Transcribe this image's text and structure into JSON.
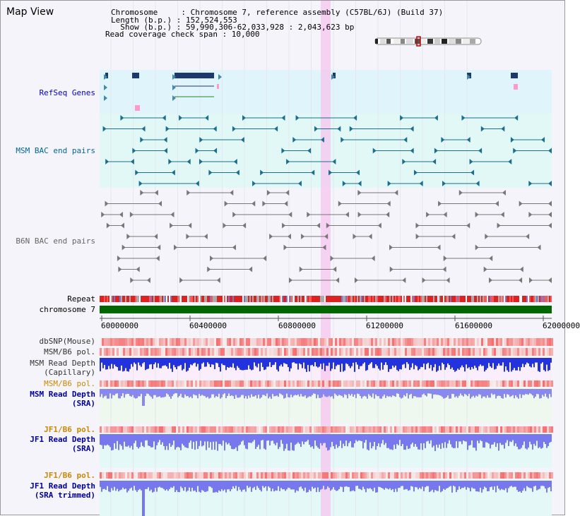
{
  "header": {
    "title": "Map View",
    "info_lines": [
      "Chromosome     : Chromosome 7, reference assembly (C57BL/6J) (Build 37)",
      "Length (b.p.) : 152,524,553",
      "  Show (b.p.) : 59,990,306-62,033,928 : 2,043,623 bp",
      "Read coverage check span : 10,000"
    ]
  },
  "tracks": {
    "refseq": {
      "label": "RefSeq Genes",
      "color": "#0000cc"
    },
    "msm_bac": {
      "label": "MSM BAC end pairs",
      "color": "#006699"
    },
    "b6n_bac": {
      "label": "B6N BAC end pairs",
      "color": "#666666"
    },
    "repeat": {
      "label": "Repeat"
    },
    "chromosome": {
      "label": "chromosome 7",
      "color": "#006600"
    },
    "dbsnp": {
      "label": "dbSNP(Mouse)"
    },
    "msm_b6_pol_1": {
      "label": "MSM/B6 pol."
    },
    "msm_depth_cap": {
      "label": "MSM Read Depth\n(Capillary)"
    },
    "msm_b6_pol_2": {
      "label": "MSM/B6 pol.",
      "color": "#cc8800"
    },
    "msm_depth_sra": {
      "label": "MSM Read Depth\n(SRA)",
      "color": "#000099"
    },
    "jf1_b6_pol_1": {
      "label": "JF1/B6 pol.",
      "color": "#cc8800"
    },
    "jf1_depth_sra": {
      "label": "JF1 Read Depth\n(SRA)",
      "color": "#000099"
    },
    "jf1_b6_pol_2": {
      "label": "JF1/B6 pol.",
      "color": "#cc8800"
    },
    "jf1_depth_trim": {
      "label": "JF1 Read Depth\n(SRA trimmed)",
      "color": "#000099"
    }
  },
  "ruler": {
    "ticks": [
      "60000000",
      "60400000",
      "60800000",
      "61200000",
      "61600000",
      "62000000"
    ]
  }
}
